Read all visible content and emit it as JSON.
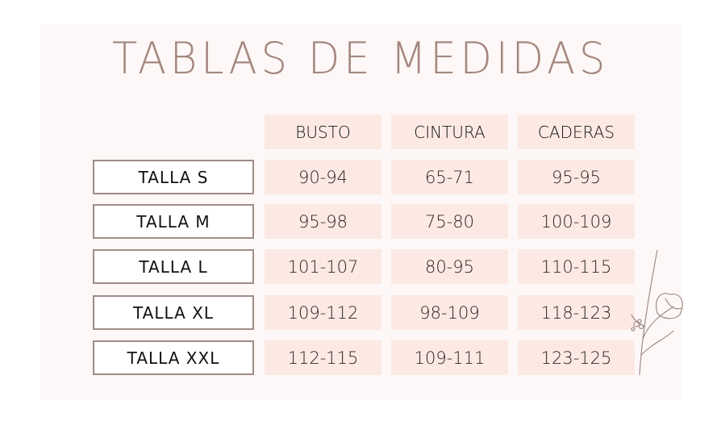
{
  "title": "TABLAS DE MEDIDAS",
  "colors": {
    "title": "#a4877f",
    "cell_bg": "#fce9e4",
    "label_border": "#a08b86",
    "panel_bg": "#fdf8f7"
  },
  "table": {
    "headers": [
      "BUSTO",
      "CINTURA",
      "CADERAS"
    ],
    "rows": [
      {
        "label": "TALLA S",
        "values": [
          "90-94",
          "65-71",
          "95-95"
        ]
      },
      {
        "label": "TALLA M",
        "values": [
          "95-98",
          "75-80",
          "100-109"
        ]
      },
      {
        "label": "TALLA L",
        "values": [
          "101-107",
          "80-95",
          "110-115"
        ]
      },
      {
        "label": "TALLA XL",
        "values": [
          "109-112",
          "98-109",
          "118-123"
        ]
      },
      {
        "label": "TALLA XXL",
        "values": [
          "112-115",
          "109-111",
          "123-125"
        ]
      }
    ]
  },
  "decorations": {
    "flower": "flower-line-art-icon"
  }
}
